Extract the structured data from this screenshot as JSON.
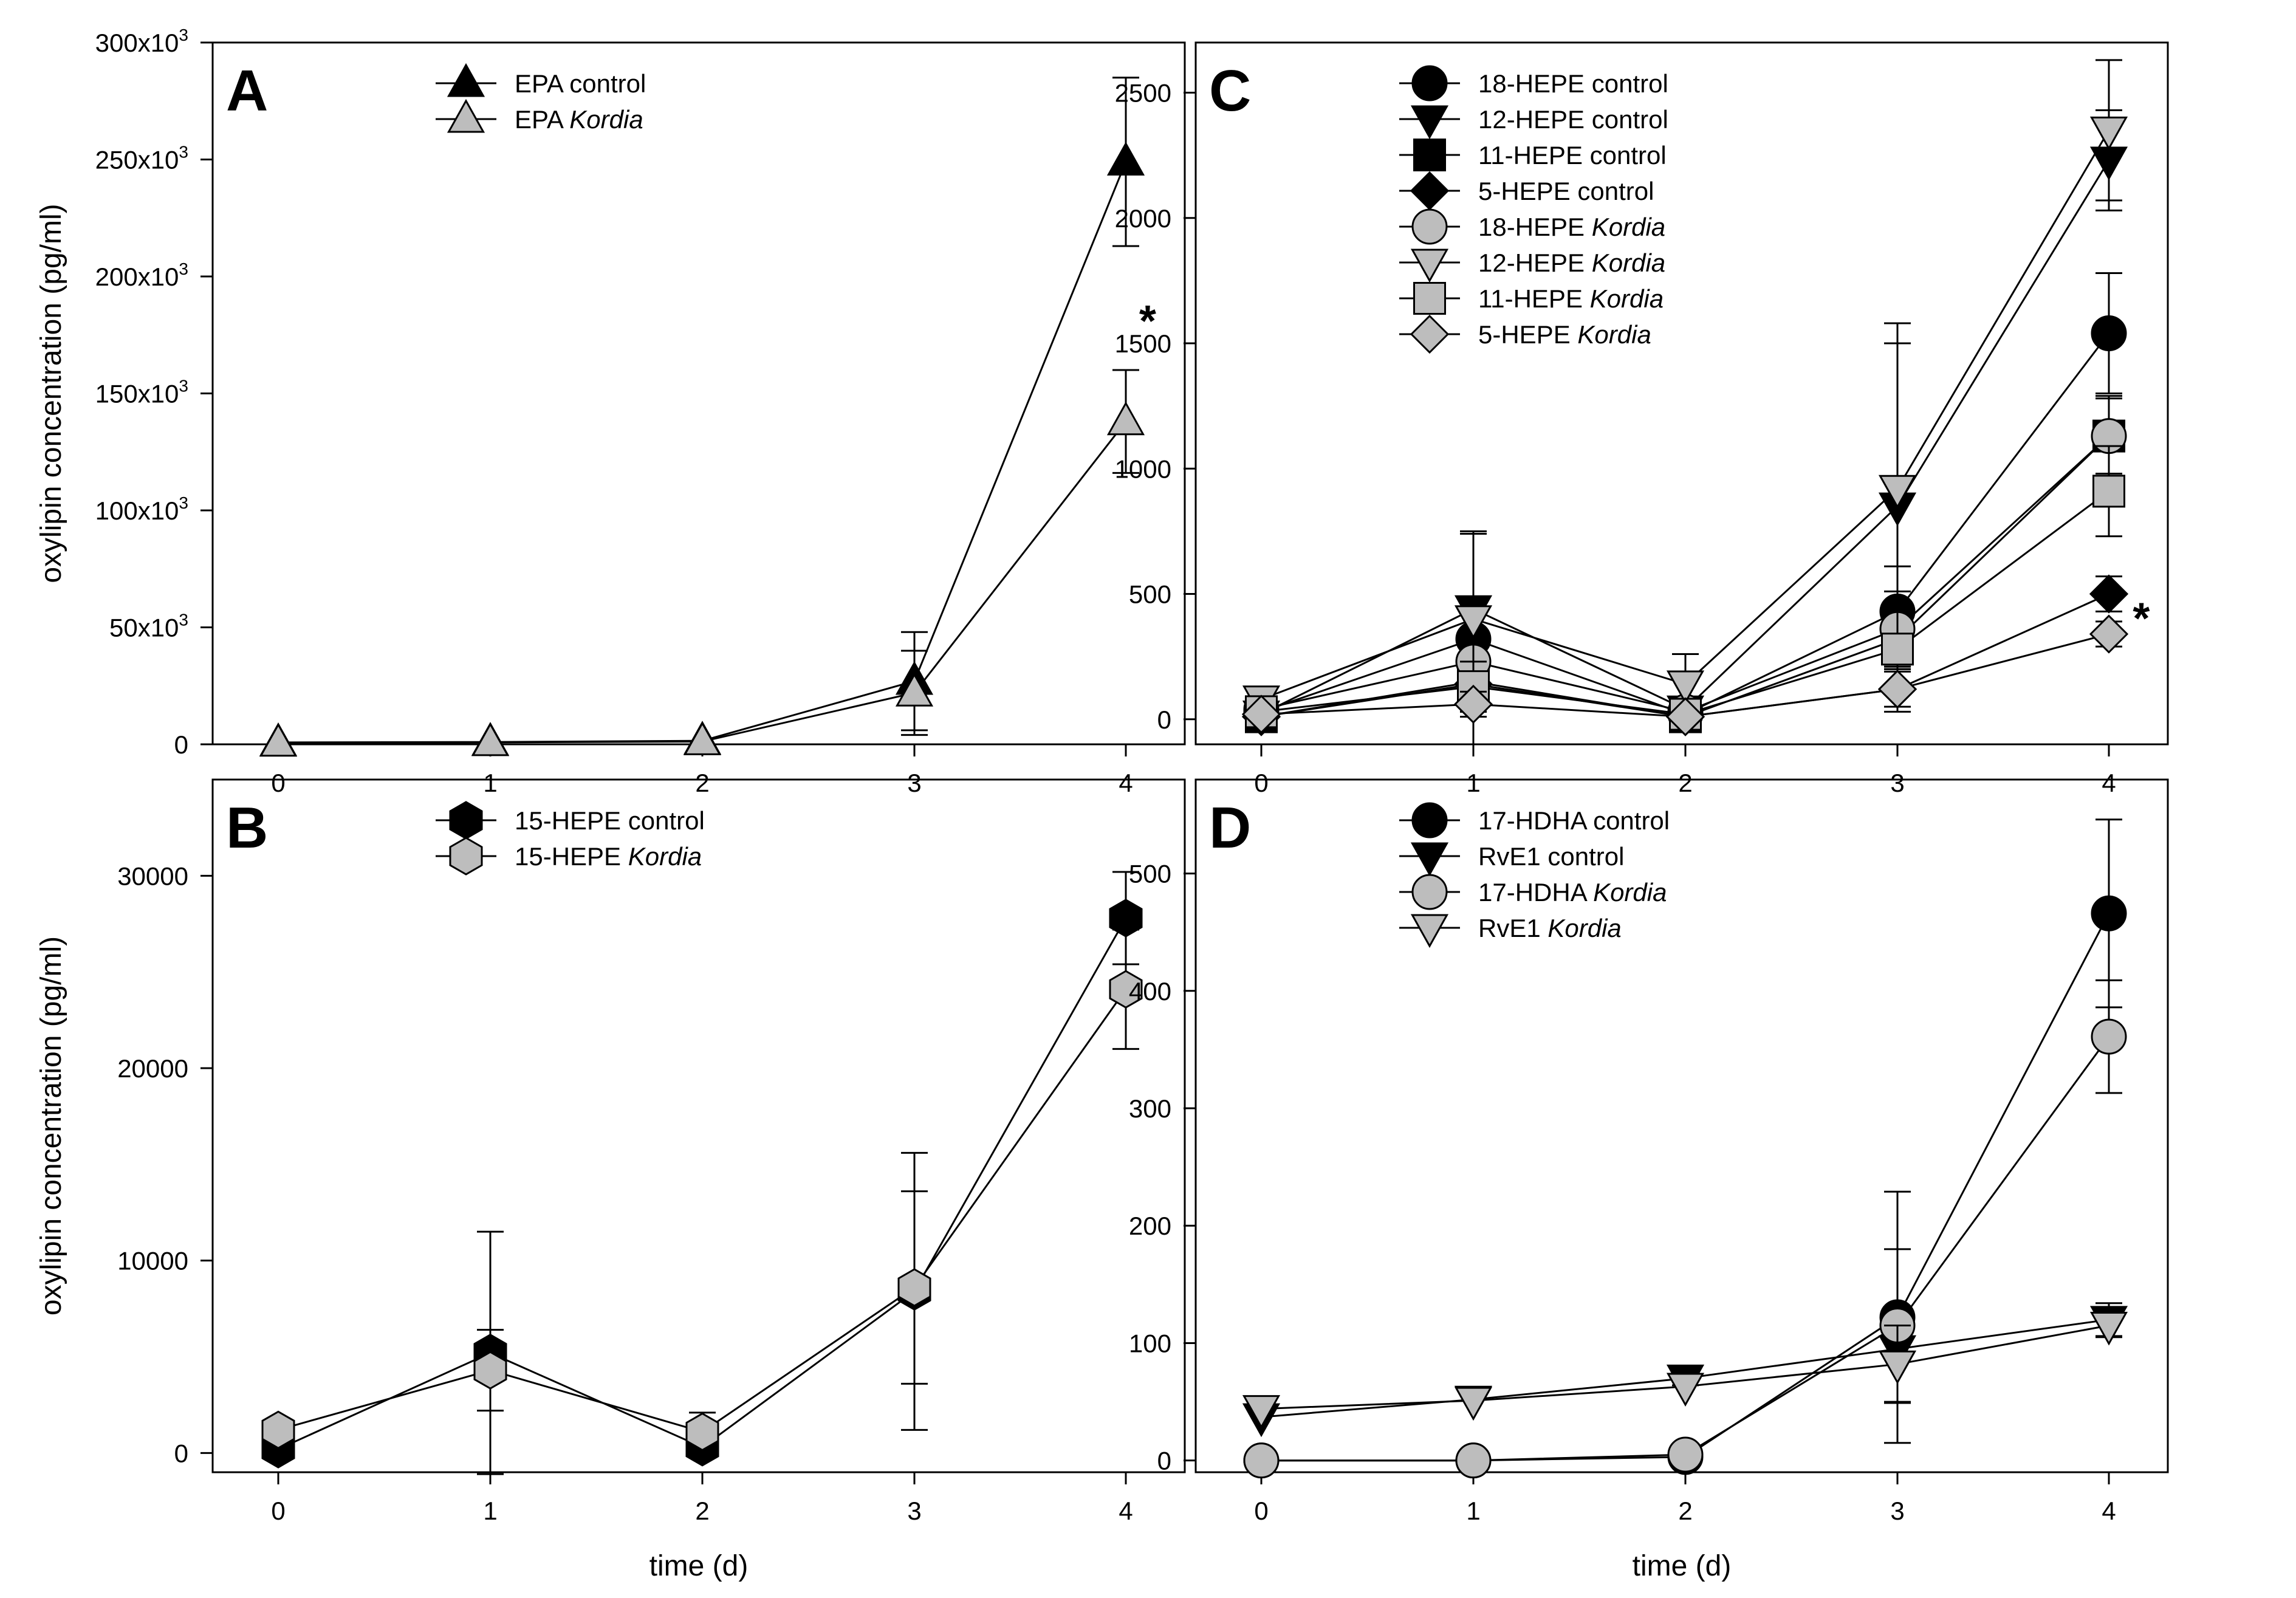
{
  "chart_data": [
    {
      "type": "line",
      "panel": "A",
      "title": "",
      "xlabel": "",
      "ylabel": "oxylipin concentration (pg/ml)",
      "x": [
        0,
        1,
        2,
        3,
        4
      ],
      "xticks": [
        "0",
        "1",
        "2",
        "3",
        "4"
      ],
      "ylim": [
        0,
        300000
      ],
      "yticks": [
        0,
        50000,
        100000,
        150000,
        200000,
        250000,
        300000
      ],
      "ytick_labels": [
        {
          "base": "0",
          "sup": ""
        },
        {
          "base": "50x10",
          "sup": "3"
        },
        {
          "base": "100x10",
          "sup": "3"
        },
        {
          "base": "150x10",
          "sup": "3"
        },
        {
          "base": "200x10",
          "sup": "3"
        },
        {
          "base": "250x10",
          "sup": "3"
        },
        {
          "base": "300x10",
          "sup": "3"
        }
      ],
      "legend_position": "top-center",
      "annotations": [
        {
          "text": "*",
          "x": 4.1,
          "y": 185000
        }
      ],
      "series": [
        {
          "name": "EPA control",
          "name_prefix": "EPA",
          "name_suffix": "control",
          "italic_suffix": false,
          "marker": "triangle-up",
          "color": "#000000",
          "values": [
            800,
            1000,
            1500,
            27000,
            249000
          ],
          "errors": [
            0,
            0,
            0,
            21000,
            36000
          ]
        },
        {
          "name": "EPA Kordia",
          "name_prefix": "EPA",
          "name_suffix": "Kordia",
          "italic_suffix": true,
          "marker": "triangle-up",
          "color": "#bdbdbd",
          "values": [
            600,
            800,
            1200,
            22000,
            138000
          ],
          "errors": [
            0,
            0,
            0,
            18000,
            22000
          ]
        }
      ]
    },
    {
      "type": "line",
      "panel": "B",
      "title": "",
      "xlabel": "time (d)",
      "ylabel": "oxylipin concentration (pg/ml)",
      "x": [
        0,
        1,
        2,
        3,
        4
      ],
      "xticks": [
        "0",
        "1",
        "2",
        "3",
        "4"
      ],
      "ylim": [
        -1000,
        35000
      ],
      "yticks": [
        0,
        10000,
        20000,
        30000
      ],
      "ytick_labels": [
        {
          "base": "0",
          "sup": ""
        },
        {
          "base": "10000",
          "sup": ""
        },
        {
          "base": "20000",
          "sup": ""
        },
        {
          "base": "30000",
          "sup": ""
        }
      ],
      "legend_position": "top-center",
      "annotations": [],
      "series": [
        {
          "name": "15-HEPE control",
          "name_prefix": "15-HEPE",
          "name_suffix": "control",
          "italic_suffix": false,
          "marker": "hexagon",
          "color": "#000000",
          "values": [
            200,
            5200,
            300,
            8400,
            27800
          ],
          "errors": [
            0,
            6300,
            0,
            7200,
            2400
          ]
        },
        {
          "name": "15-HEPE Kordia",
          "name_prefix": "15-HEPE",
          "name_suffix": "Kordia",
          "italic_suffix": true,
          "marker": "hexagon",
          "color": "#bdbdbd",
          "values": [
            1200,
            4300,
            1100,
            8600,
            24100
          ],
          "errors": [
            0,
            2100,
            1000,
            5000,
            3100
          ]
        }
      ]
    },
    {
      "type": "line",
      "panel": "C",
      "title": "",
      "xlabel": "",
      "ylabel": "",
      "x": [
        0,
        1,
        2,
        3,
        4
      ],
      "xticks": [
        "0",
        "1",
        "2",
        "3",
        "4"
      ],
      "ylim": [
        -100,
        2700
      ],
      "yticks": [
        0,
        500,
        1000,
        1500,
        2000,
        2500
      ],
      "ytick_labels": [
        {
          "base": "0",
          "sup": ""
        },
        {
          "base": "500",
          "sup": ""
        },
        {
          "base": "1000",
          "sup": ""
        },
        {
          "base": "1500",
          "sup": ""
        },
        {
          "base": "2000",
          "sup": ""
        },
        {
          "base": "2500",
          "sup": ""
        }
      ],
      "legend_position": "top-center",
      "annotations": [
        {
          "text": "*",
          "x": 4.15,
          "y": 440
        }
      ],
      "series": [
        {
          "name": "18-HEPE control",
          "name_prefix": "18-HEPE",
          "name_suffix": "control",
          "italic_suffix": false,
          "marker": "circle",
          "color": "#000000",
          "values": [
            30,
            320,
            20,
            430,
            1540
          ],
          "errors": [
            0,
            420,
            0,
            180,
            240
          ]
        },
        {
          "name": "12-HEPE control",
          "name_prefix": "12-HEPE",
          "name_suffix": "control",
          "italic_suffix": false,
          "marker": "triangle-down",
          "color": "#000000",
          "values": [
            20,
            440,
            40,
            850,
            2230
          ],
          "errors": [
            0,
            310,
            0,
            650,
            200
          ]
        },
        {
          "name": "11-HEPE control",
          "name_prefix": "11-HEPE",
          "name_suffix": "control",
          "italic_suffix": false,
          "marker": "square",
          "color": "#000000",
          "values": [
            10,
            150,
            10,
            320,
            1130
          ],
          "errors": [
            0,
            120,
            0,
            120,
            160
          ]
        },
        {
          "name": "5-HEPE control",
          "name_prefix": "5-HEPE",
          "name_suffix": "control",
          "italic_suffix": false,
          "marker": "diamond",
          "color": "#000000",
          "values": [
            10,
            140,
            10,
            120,
            500
          ],
          "errors": [
            0,
            80,
            0,
            90,
            70
          ]
        },
        {
          "name": "18-HEPE Kordia",
          "name_prefix": "18-HEPE",
          "name_suffix": "Kordia",
          "italic_suffix": true,
          "marker": "circle",
          "color": "#bdbdbd",
          "values": [
            40,
            230,
            30,
            360,
            1130
          ],
          "errors": [
            0,
            200,
            0,
            150,
            150
          ]
        },
        {
          "name": "12-HEPE Kordia",
          "name_prefix": "12-HEPE",
          "name_suffix": "Kordia",
          "italic_suffix": true,
          "marker": "triangle-down",
          "color": "#bdbdbd",
          "values": [
            80,
            400,
            140,
            920,
            2350
          ],
          "errors": [
            0,
            340,
            120,
            660,
            280
          ]
        },
        {
          "name": "11-HEPE Kordia",
          "name_prefix": "11-HEPE",
          "name_suffix": "Kordia",
          "italic_suffix": true,
          "marker": "square",
          "color": "#bdbdbd",
          "values": [
            30,
            130,
            20,
            280,
            910
          ],
          "errors": [
            0,
            100,
            0,
            150,
            180
          ]
        },
        {
          "name": "5-HEPE Kordia",
          "name_prefix": "5-HEPE",
          "name_suffix": "Kordia",
          "italic_suffix": true,
          "marker": "diamond",
          "color": "#bdbdbd",
          "values": [
            20,
            60,
            10,
            120,
            340
          ],
          "errors": [
            0,
            50,
            0,
            70,
            50
          ]
        }
      ]
    },
    {
      "type": "line",
      "panel": "D",
      "title": "",
      "xlabel": "time (d)",
      "ylabel": "",
      "x": [
        0,
        1,
        2,
        3,
        4
      ],
      "xticks": [
        "0",
        "1",
        "2",
        "3",
        "4"
      ],
      "ylim": [
        -10,
        580
      ],
      "yticks": [
        0,
        100,
        200,
        300,
        400,
        500
      ],
      "ytick_labels": [
        {
          "base": "0",
          "sup": ""
        },
        {
          "base": "100",
          "sup": ""
        },
        {
          "base": "200",
          "sup": ""
        },
        {
          "base": "300",
          "sup": ""
        },
        {
          "base": "400",
          "sup": ""
        },
        {
          "base": "500",
          "sup": ""
        }
      ],
      "legend_position": "top-center",
      "annotations": [],
      "series": [
        {
          "name": "17-HDHA control",
          "name_prefix": "17-HDHA",
          "name_suffix": "control",
          "italic_suffix": false,
          "marker": "circle",
          "color": "#000000",
          "values": [
            0,
            0,
            3,
            122,
            466
          ],
          "errors": [
            0,
            0,
            0,
            107,
            80
          ]
        },
        {
          "name": "RvE1 control",
          "name_prefix": "RvE1",
          "name_suffix": "control",
          "italic_suffix": false,
          "marker": "triangle-down",
          "color": "#000000",
          "values": [
            37,
            52,
            70,
            95,
            120
          ],
          "errors": [
            0,
            0,
            6,
            0,
            14
          ]
        },
        {
          "name": "17-HDHA Kordia",
          "name_prefix": "17-HDHA",
          "name_suffix": "Kordia",
          "italic_suffix": true,
          "marker": "circle",
          "color": "#bdbdbd",
          "values": [
            0,
            0,
            5,
            115,
            361
          ],
          "errors": [
            0,
            0,
            0,
            65,
            48
          ]
        },
        {
          "name": "RvE1 Kordia",
          "name_prefix": "RvE1",
          "name_suffix": "Kordia",
          "italic_suffix": true,
          "marker": "triangle-down",
          "color": "#bdbdbd",
          "values": [
            44,
            51,
            63,
            82,
            115
          ],
          "errors": [
            0,
            0,
            0,
            33,
            10
          ]
        }
      ]
    }
  ]
}
